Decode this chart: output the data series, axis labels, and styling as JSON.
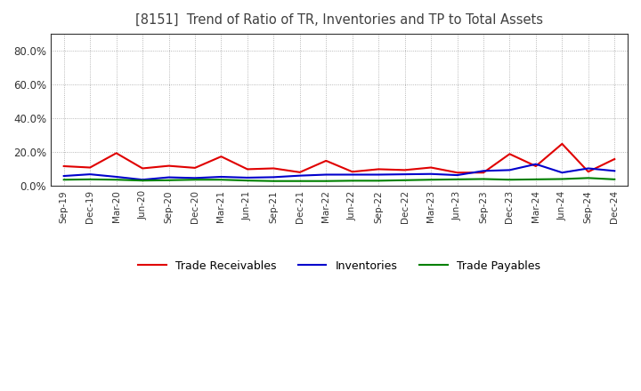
{
  "title": "[8151]  Trend of Ratio of TR, Inventories and TP to Total Assets",
  "labels": [
    "Sep-19",
    "Dec-19",
    "Mar-20",
    "Jun-20",
    "Sep-20",
    "Dec-20",
    "Mar-21",
    "Jun-21",
    "Sep-21",
    "Dec-21",
    "Mar-22",
    "Jun-22",
    "Sep-22",
    "Dec-22",
    "Mar-23",
    "Jun-23",
    "Sep-23",
    "Dec-23",
    "Mar-24",
    "Jun-24",
    "Sep-24",
    "Dec-24"
  ],
  "trade_receivables": [
    0.118,
    0.11,
    0.195,
    0.105,
    0.12,
    0.108,
    0.175,
    0.1,
    0.105,
    0.082,
    0.15,
    0.085,
    0.1,
    0.095,
    0.11,
    0.08,
    0.08,
    0.19,
    0.118,
    0.25,
    0.085,
    0.16
  ],
  "inventories": [
    0.06,
    0.07,
    0.055,
    0.038,
    0.052,
    0.048,
    0.055,
    0.05,
    0.053,
    0.062,
    0.068,
    0.068,
    0.068,
    0.07,
    0.072,
    0.065,
    0.09,
    0.095,
    0.13,
    0.08,
    0.105,
    0.09
  ],
  "trade_payables": [
    0.038,
    0.04,
    0.038,
    0.033,
    0.035,
    0.038,
    0.038,
    0.033,
    0.03,
    0.03,
    0.03,
    0.032,
    0.032,
    0.035,
    0.038,
    0.04,
    0.042,
    0.038,
    0.04,
    0.042,
    0.048,
    0.04
  ],
  "tr_color": "#e00000",
  "inv_color": "#0000cc",
  "tp_color": "#008000",
  "ylim": [
    0.0,
    0.9
  ],
  "yticks": [
    0.0,
    0.2,
    0.4,
    0.6,
    0.8
  ],
  "legend_labels": [
    "Trade Receivables",
    "Inventories",
    "Trade Payables"
  ],
  "bg_color": "#ffffff",
  "grid_color": "#999999",
  "title_color": "#404040"
}
